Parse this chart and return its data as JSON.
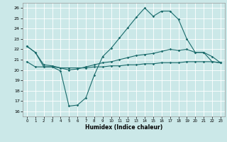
{
  "title": "",
  "xlabel": "Humidex (Indice chaleur)",
  "ylabel": "",
  "xlim": [
    -0.5,
    23.5
  ],
  "ylim": [
    15.5,
    26.5
  ],
  "yticks": [
    16,
    17,
    18,
    19,
    20,
    21,
    22,
    23,
    24,
    25,
    26
  ],
  "xticks": [
    0,
    1,
    2,
    3,
    4,
    5,
    6,
    7,
    8,
    9,
    10,
    11,
    12,
    13,
    14,
    15,
    16,
    17,
    18,
    19,
    20,
    21,
    22,
    23
  ],
  "bg_color": "#cbe8e8",
  "grid_color": "#b0d4d4",
  "line_color": "#1a6b6b",
  "line1_x": [
    0,
    1,
    2,
    3,
    4,
    5,
    6,
    7,
    8,
    9,
    10,
    11,
    12,
    13,
    14,
    15,
    16,
    17,
    18,
    19,
    20,
    21,
    22,
    23
  ],
  "line1_y": [
    22.3,
    21.7,
    20.3,
    20.3,
    19.9,
    16.5,
    16.6,
    17.3,
    19.5,
    21.3,
    22.1,
    23.1,
    24.1,
    25.1,
    26.0,
    25.2,
    25.7,
    25.7,
    24.9,
    23.0,
    21.7,
    21.7,
    20.8,
    20.7
  ],
  "line2_x": [
    0,
    1,
    2,
    3,
    4,
    5,
    6,
    7,
    8,
    9,
    10,
    11,
    12,
    13,
    14,
    15,
    16,
    17,
    18,
    19,
    20,
    21,
    22,
    23
  ],
  "line2_y": [
    22.3,
    21.7,
    20.5,
    20.4,
    20.2,
    20.0,
    20.1,
    20.3,
    20.5,
    20.7,
    20.8,
    21.0,
    21.2,
    21.4,
    21.5,
    21.6,
    21.8,
    22.0,
    21.9,
    22.0,
    21.7,
    21.7,
    21.3,
    20.7
  ],
  "line3_x": [
    0,
    1,
    2,
    3,
    4,
    5,
    6,
    7,
    8,
    9,
    10,
    11,
    12,
    13,
    14,
    15,
    16,
    17,
    18,
    19,
    20,
    21,
    22,
    23
  ],
  "line3_y": [
    20.8,
    20.3,
    20.3,
    20.3,
    20.2,
    20.2,
    20.2,
    20.2,
    20.3,
    20.3,
    20.4,
    20.4,
    20.5,
    20.5,
    20.6,
    20.6,
    20.7,
    20.7,
    20.7,
    20.8,
    20.8,
    20.8,
    20.8,
    20.7
  ]
}
